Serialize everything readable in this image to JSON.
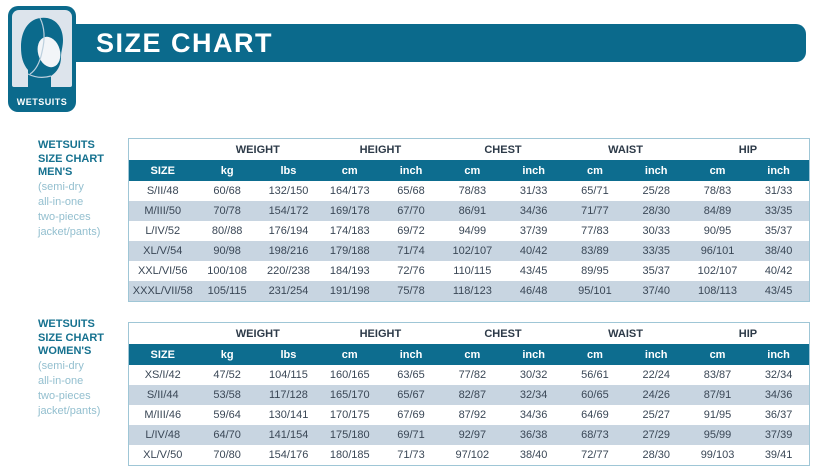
{
  "logo": {
    "label": "WETSUITS",
    "icon": "wetsuit-hood-icon"
  },
  "banner": {
    "title": "SIZE CHART"
  },
  "colors": {
    "teal": "#0d6d8f",
    "banner_teal": "#0b6a8c",
    "row_shade": "#c8d5e1",
    "table_border": "#9fc6d6",
    "dark_text": "#3a4756",
    "light_teal_text": "#93bfcf"
  },
  "sections": [
    {
      "sidebar": {
        "title_lines": [
          "WETSUITS",
          "SIZE CHART",
          "MEN'S"
        ],
        "subtitle_lines": [
          "(semi-dry",
          "all-in-one",
          "two-pieces",
          "jacket/pants)"
        ]
      },
      "table": {
        "size_header": "SIZE",
        "group_headers": [
          "WEIGHT",
          "HEIGHT",
          "CHEST",
          "WAIST",
          "HIP"
        ],
        "unit_headers": [
          "kg",
          "lbs",
          "cm",
          "inch",
          "cm",
          "inch",
          "cm",
          "inch",
          "cm",
          "inch"
        ],
        "rows": [
          [
            "S/II/48",
            "60/68",
            "132/150",
            "164/173",
            "65/68",
            "78/83",
            "31/33",
            "65/71",
            "25/28",
            "78/83",
            "31/33"
          ],
          [
            "M/III/50",
            "70/78",
            "154/172",
            "169/178",
            "67/70",
            "86/91",
            "34/36",
            "71/77",
            "28/30",
            "84/89",
            "33/35"
          ],
          [
            "L/IV/52",
            "80//88",
            "176/194",
            "174/183",
            "69/72",
            "94/99",
            "37/39",
            "77/83",
            "30/33",
            "90/95",
            "35/37"
          ],
          [
            "XL/V/54",
            "90/98",
            "198/216",
            "179/188",
            "71/74",
            "102/107",
            "40/42",
            "83/89",
            "33/35",
            "96/101",
            "38/40"
          ],
          [
            "XXL/VI/56",
            "100/108",
            "220//238",
            "184/193",
            "72/76",
            "110/115",
            "43/45",
            "89/95",
            "35/37",
            "102/107",
            "40/42"
          ],
          [
            "XXXL/VII/58",
            "105/115",
            "231/254",
            "191/198",
            "75/78",
            "118/123",
            "46/48",
            "95/101",
            "37/40",
            "108/113",
            "43/45"
          ]
        ]
      }
    },
    {
      "sidebar": {
        "title_lines": [
          "WETSUITS",
          "SIZE CHART",
          "WOMEN'S"
        ],
        "subtitle_lines": [
          "(semi-dry",
          "all-in-one",
          "two-pieces",
          "jacket/pants)"
        ]
      },
      "table": {
        "size_header": "SIZE",
        "group_headers": [
          "WEIGHT",
          "HEIGHT",
          "CHEST",
          "WAIST",
          "HIP"
        ],
        "unit_headers": [
          "kg",
          "lbs",
          "cm",
          "inch",
          "cm",
          "inch",
          "cm",
          "inch",
          "cm",
          "inch"
        ],
        "rows": [
          [
            "XS/I/42",
            "47/52",
            "104/115",
            "160/165",
            "63/65",
            "77/82",
            "30/32",
            "56/61",
            "22/24",
            "83/87",
            "32/34"
          ],
          [
            "S/II/44",
            "53/58",
            "117/128",
            "165/170",
            "65/67",
            "82/87",
            "32/34",
            "60/65",
            "24/26",
            "87/91",
            "34/36"
          ],
          [
            "M/III/46",
            "59/64",
            "130/141",
            "170/175",
            "67/69",
            "87/92",
            "34/36",
            "64/69",
            "25/27",
            "91/95",
            "36/37"
          ],
          [
            "L/IV/48",
            "64/70",
            "141/154",
            "175/180",
            "69/71",
            "92/97",
            "36/38",
            "68/73",
            "27/29",
            "95/99",
            "37/39"
          ],
          [
            "XL/V/50",
            "70/80",
            "154/176",
            "180/185",
            "71/73",
            "97/102",
            "38/40",
            "72/77",
            "28/30",
            "99/103",
            "39/41"
          ]
        ]
      }
    }
  ]
}
